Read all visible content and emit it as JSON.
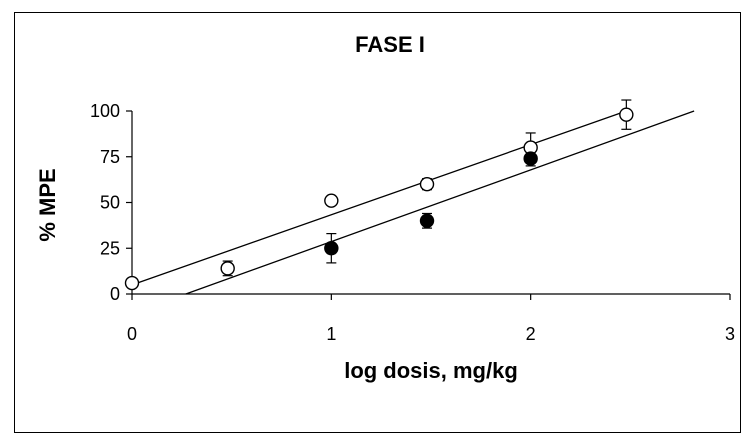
{
  "chart_data": {
    "type": "scatter",
    "title": "FASE I",
    "xlabel": "log dosis, mg/kg",
    "ylabel": "% MPE",
    "xlim": [
      0,
      3
    ],
    "ylim": [
      0,
      100
    ],
    "x_ticks": [
      "0",
      "1",
      "2",
      "3"
    ],
    "y_ticks": [
      "0",
      "25",
      "50",
      "75",
      "100"
    ],
    "grid": false,
    "legend": "none",
    "series": [
      {
        "marker": "open-circle",
        "color": "#000000",
        "points": [
          {
            "x": 0,
            "y": 6,
            "err": 0
          },
          {
            "x": 0.48,
            "y": 14,
            "err": 4
          },
          {
            "x": 1,
            "y": 51,
            "err": 0
          },
          {
            "x": 1.48,
            "y": 60,
            "err": 3
          },
          {
            "x": 2,
            "y": 80,
            "err": 8
          },
          {
            "x": 2.48,
            "y": 98,
            "err": 8
          }
        ],
        "fit_line": {
          "x_start": 0,
          "y_start": 5,
          "x_end": 2.48,
          "y_end": 100
        }
      },
      {
        "marker": "filled-circle",
        "color": "#000000",
        "points": [
          {
            "x": 1,
            "y": 25,
            "err": 8
          },
          {
            "x": 1.48,
            "y": 40,
            "err": 4
          },
          {
            "x": 2,
            "y": 74,
            "err": 4
          }
        ],
        "fit_line": {
          "x_start": 0.27,
          "y_start": 0,
          "x_end": 2.82,
          "y_end": 100
        }
      }
    ]
  }
}
